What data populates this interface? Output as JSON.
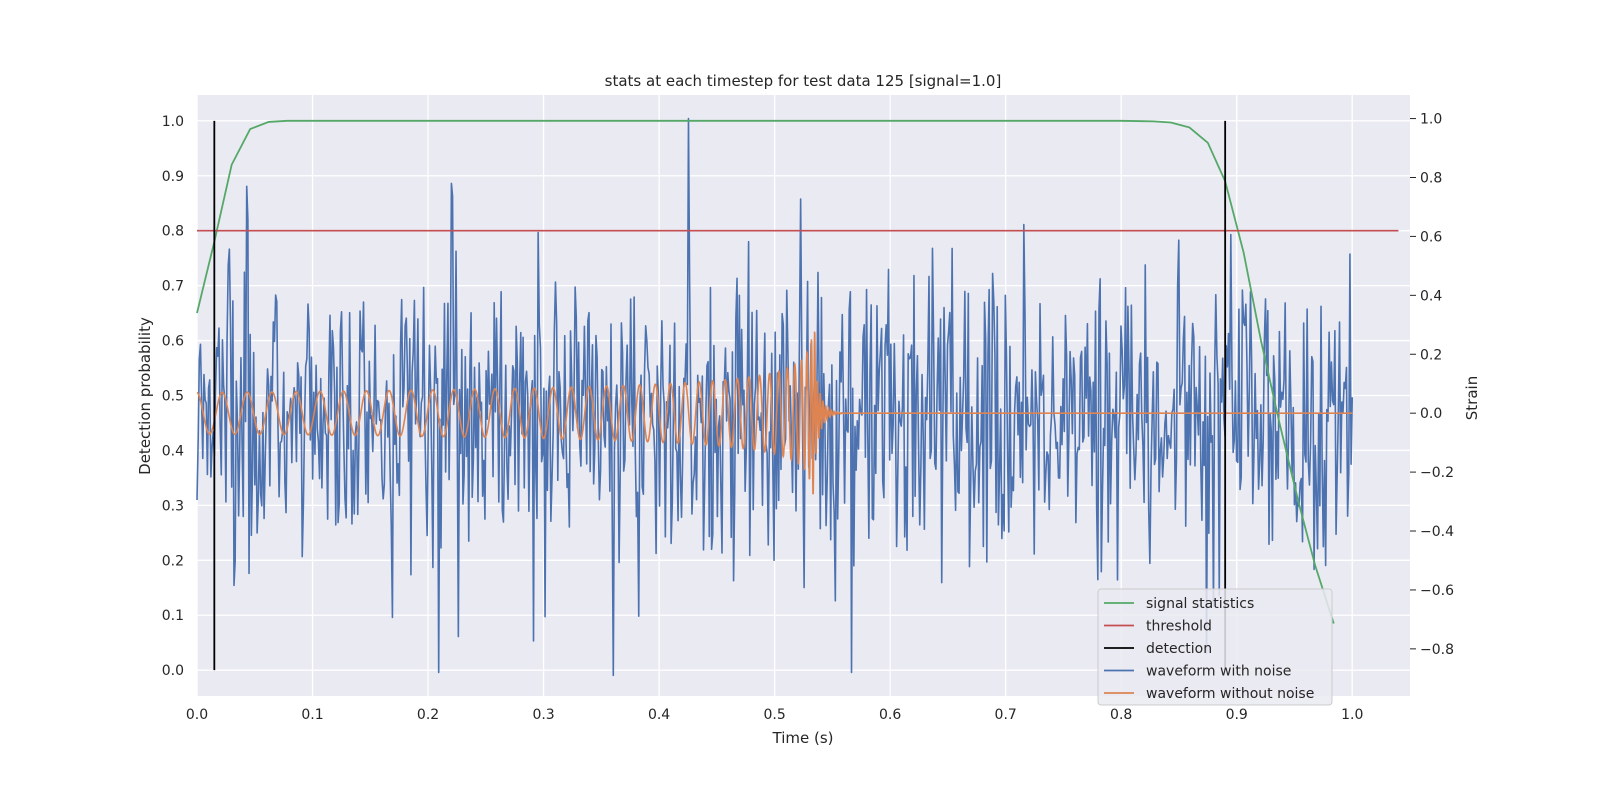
{
  "chart_data": {
    "type": "line",
    "title": "stats at each timestep for test data 125 [signal=1.0]",
    "xlabel": "Time (s)",
    "ylabel_left": "Detection probability",
    "ylabel_right": "Strain",
    "xlim": [
      0.0,
      1.05
    ],
    "ylim_left": [
      -0.047,
      1.047
    ],
    "ylim_right": [
      -0.96,
      1.08
    ],
    "grid": true,
    "legend_position": "lower-right",
    "x_ticks": [
      "0.0",
      "0.1",
      "0.2",
      "0.3",
      "0.4",
      "0.5",
      "0.6",
      "0.7",
      "0.8",
      "0.9",
      "1.0"
    ],
    "y_ticks_left": [
      "0.0",
      "0.1",
      "0.2",
      "0.3",
      "0.4",
      "0.5",
      "0.6",
      "0.7",
      "0.8",
      "0.9",
      "1.0"
    ],
    "y_ticks_right": [
      "−0.8",
      "−0.6",
      "−0.4",
      "−0.2",
      "0.0",
      "0.2",
      "0.4",
      "0.6",
      "0.8",
      "1.0"
    ],
    "colors": {
      "background": "#eaeaf2",
      "grid": "#ffffff",
      "signal_statistics": "#55a868",
      "threshold": "#c44e52",
      "detection": "#000000",
      "waveform_with_noise": "#4c72b0",
      "waveform_without_noise": "#dd8452"
    },
    "series": [
      {
        "name": "signal statistics",
        "axis": "left",
        "x": [
          0.0,
          0.015,
          0.03,
          0.046,
          0.062,
          0.078,
          0.1,
          0.2,
          0.3,
          0.4,
          0.5,
          0.6,
          0.7,
          0.8,
          0.828,
          0.843,
          0.859,
          0.875,
          0.89,
          0.906,
          0.921,
          0.937,
          0.953,
          0.968,
          0.984
        ],
        "y": [
          0.65,
          0.78,
          0.92,
          0.985,
          0.998,
          1.0,
          1.0,
          1.0,
          1.0,
          1.0,
          1.0,
          1.0,
          1.0,
          1.0,
          0.999,
          0.997,
          0.988,
          0.96,
          0.89,
          0.76,
          0.6,
          0.45,
          0.31,
          0.19,
          0.085
        ]
      },
      {
        "name": "threshold",
        "axis": "left",
        "x": [
          0.0,
          1.04
        ],
        "y": [
          0.8,
          0.8
        ]
      },
      {
        "name": "detection",
        "axis": "left",
        "segments": [
          {
            "x": 0.015,
            "y0": 0.0,
            "y1": 1.0
          },
          {
            "x": 0.89,
            "y0": 0.0,
            "y1": 1.0
          }
        ]
      },
      {
        "name": "waveform with noise",
        "axis": "right",
        "x_start": 0.0,
        "x_end": 1.0,
        "sigma": 0.25,
        "n_points": 1000,
        "range": [
          -0.89,
          1.0
        ],
        "notable_values": [
          {
            "x": 0.425,
            "y": 1.0
          },
          {
            "x": 0.36,
            "y": -0.89
          },
          {
            "x": 0.567,
            "y": -0.88
          },
          {
            "x": 0.209,
            "y": -0.88
          },
          {
            "x": 0.043,
            "y": 0.77
          },
          {
            "x": 0.22,
            "y": 0.78
          },
          {
            "x": 0.998,
            "y": 0.54
          }
        ]
      },
      {
        "name": "waveform without noise",
        "axis": "right",
        "x_start": 0.0,
        "x_end": 1.0,
        "description_values": {
          "initial_amplitude": 0.07,
          "initial_frequency_hz": 45,
          "peak_amplitude": 0.28,
          "merger_time": 0.535,
          "ringdown_end": 0.56,
          "post_merger_value": 0.0
        }
      }
    ],
    "legend": [
      "signal statistics",
      "threshold",
      "detection",
      "waveform with noise",
      "waveform without noise"
    ]
  }
}
